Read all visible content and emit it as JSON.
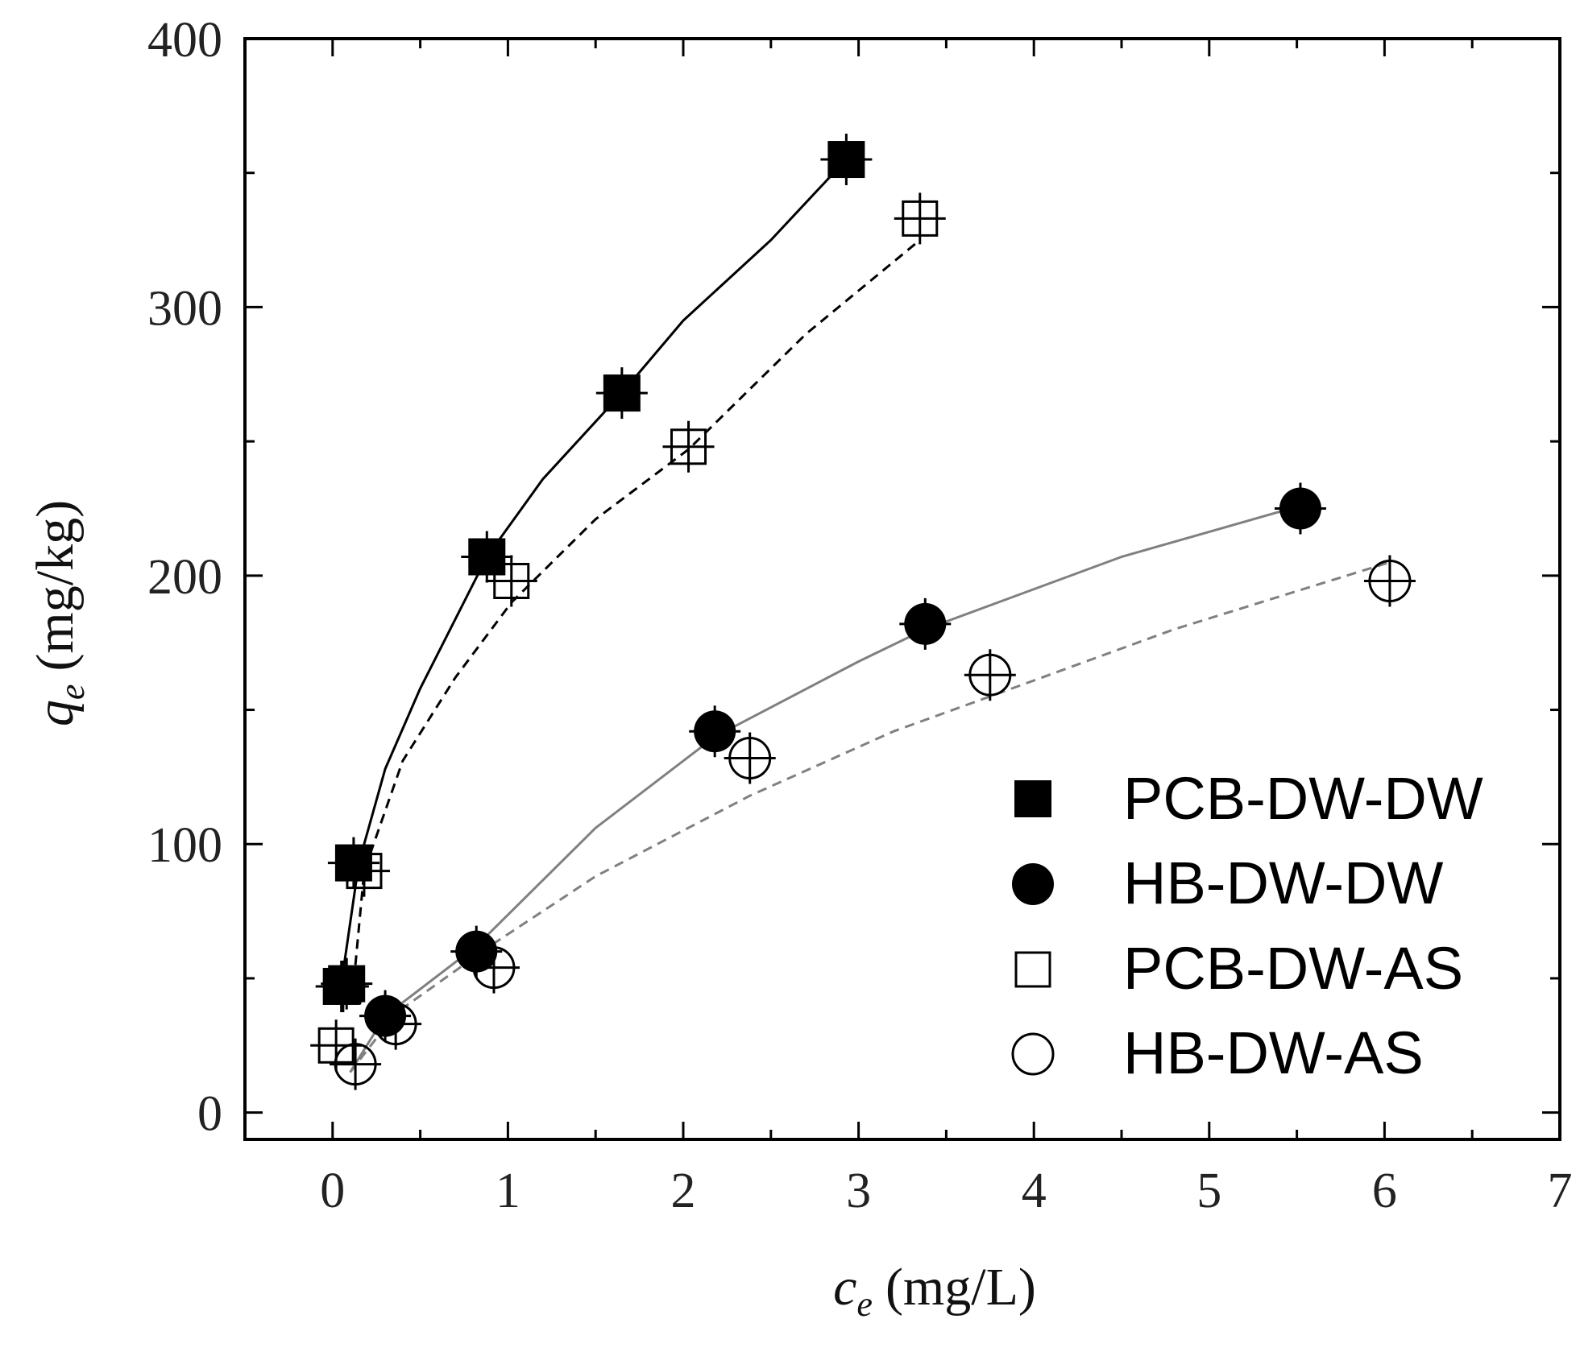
{
  "chart_data": {
    "type": "scatter",
    "xlabel": "c",
    "xlabel_sub": "e",
    "xlabel_unit": "(mg/L)",
    "ylabel": "q",
    "ylabel_sub": "e",
    "ylabel_unit": "(mg/kg)",
    "xlim": [
      -0.5,
      7
    ],
    "ylim": [
      -10,
      400
    ],
    "xticks": [
      0,
      1,
      2,
      3,
      4,
      5,
      6,
      7
    ],
    "yticks": [
      0,
      100,
      200,
      300,
      400
    ],
    "grid": false,
    "legend_position": "bottom-right",
    "series": [
      {
        "name": "PCB-DW-DW",
        "marker": "filled-square",
        "color": "#000000",
        "points": [
          {
            "x": 0.05,
            "y": 47
          },
          {
            "x": 0.08,
            "y": 48
          },
          {
            "x": 0.12,
            "y": 93
          },
          {
            "x": 0.88,
            "y": 207
          },
          {
            "x": 1.65,
            "y": 268
          },
          {
            "x": 2.93,
            "y": 355
          }
        ],
        "fit": {
          "style": "solid",
          "color": "#000000",
          "x": [
            0.05,
            0.15,
            0.3,
            0.5,
            0.88,
            1.2,
            1.65,
            2.0,
            2.5,
            2.93
          ],
          "y": [
            48,
            93,
            128,
            158,
            207,
            236,
            268,
            295,
            325,
            355
          ]
        }
      },
      {
        "name": "HB-DW-DW",
        "marker": "filled-circle",
        "color": "#000000",
        "points": [
          {
            "x": 0.3,
            "y": 36
          },
          {
            "x": 0.82,
            "y": 60
          },
          {
            "x": 2.18,
            "y": 142
          },
          {
            "x": 3.38,
            "y": 182
          },
          {
            "x": 5.52,
            "y": 225
          }
        ],
        "fit": {
          "style": "solid",
          "color": "#808080",
          "x": [
            0.1,
            0.3,
            0.82,
            1.5,
            2.18,
            3.0,
            3.38,
            4.5,
            5.52
          ],
          "y": [
            15,
            36,
            62,
            106,
            140,
            168,
            180,
            207,
            226
          ]
        }
      },
      {
        "name": "PCB-DW-AS",
        "marker": "open-square",
        "color": "#000000",
        "points": [
          {
            "x": 0.02,
            "y": 25
          },
          {
            "x": 0.06,
            "y": 47
          },
          {
            "x": 0.18,
            "y": 90
          },
          {
            "x": 1.02,
            "y": 198
          },
          {
            "x": 2.03,
            "y": 248
          },
          {
            "x": 3.35,
            "y": 333
          }
        ],
        "fit": {
          "style": "dashed",
          "color": "#000000",
          "x": [
            0.13,
            0.18,
            0.4,
            0.7,
            1.02,
            1.5,
            2.03,
            2.7,
            3.35
          ],
          "y": [
            55,
            90,
            131,
            162,
            190,
            221,
            247,
            290,
            325
          ]
        }
      },
      {
        "name": "HB-DW-AS",
        "marker": "open-circle",
        "color": "#000000",
        "points": [
          {
            "x": 0.13,
            "y": 18
          },
          {
            "x": 0.36,
            "y": 33
          },
          {
            "x": 0.92,
            "y": 54
          },
          {
            "x": 2.38,
            "y": 132
          },
          {
            "x": 3.75,
            "y": 163
          },
          {
            "x": 6.03,
            "y": 198
          }
        ],
        "fit": {
          "style": "dashed",
          "color": "#808080",
          "x": [
            0.1,
            0.36,
            0.92,
            1.5,
            2.38,
            3.2,
            3.75,
            4.8,
            6.03
          ],
          "y": [
            15,
            37,
            63,
            88,
            118,
            142,
            155,
            180,
            205
          ]
        }
      }
    ]
  }
}
